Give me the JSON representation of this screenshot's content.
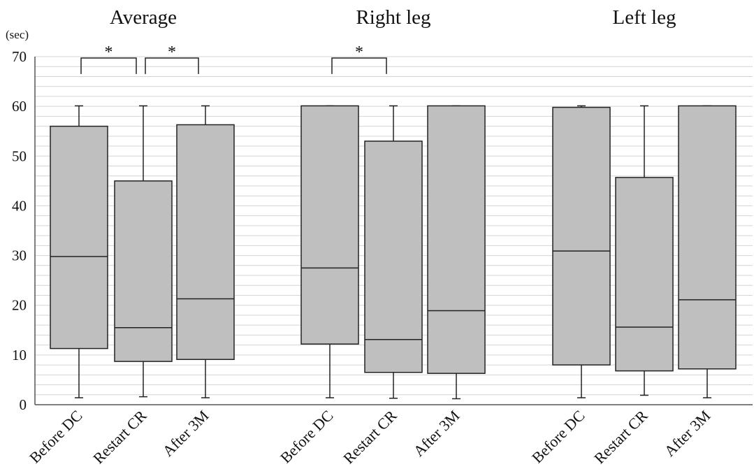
{
  "chart_data": {
    "type": "box",
    "unit_label": "(sec)",
    "ylim": [
      0,
      70
    ],
    "y_ticks": [
      0,
      10,
      20,
      30,
      40,
      50,
      60,
      70
    ],
    "grid": true,
    "panels": [
      {
        "title": "Average",
        "categories": [
          "Before DC",
          "Restart CR",
          "After 3M"
        ],
        "boxes": [
          {
            "min": 1.4,
            "q1": 11.3,
            "median": 29.8,
            "q3": 56.0,
            "max": 60.1
          },
          {
            "min": 1.6,
            "q1": 8.7,
            "median": 15.5,
            "q3": 45.0,
            "max": 60.1
          },
          {
            "min": 1.4,
            "q1": 9.1,
            "median": 21.3,
            "q3": 56.3,
            "max": 60.1
          }
        ],
        "significance": [
          {
            "from": 0,
            "to": 1,
            "label": "*"
          },
          {
            "from": 1,
            "to": 2,
            "label": "*"
          }
        ]
      },
      {
        "title": "Right leg",
        "categories": [
          "Before DC",
          "Restart CR",
          "After 3M"
        ],
        "boxes": [
          {
            "min": 1.4,
            "q1": 12.2,
            "median": 27.5,
            "q3": 60.1,
            "max": 60.1
          },
          {
            "min": 1.3,
            "q1": 6.5,
            "median": 13.1,
            "q3": 53.0,
            "max": 60.1
          },
          {
            "min": 1.2,
            "q1": 6.3,
            "median": 18.9,
            "q3": 60.1,
            "max": 60.1
          }
        ],
        "significance": [
          {
            "from": 0,
            "to": 1,
            "label": "*"
          }
        ]
      },
      {
        "title": "Left leg",
        "categories": [
          "Before DC",
          "Restart CR",
          "After 3M"
        ],
        "boxes": [
          {
            "min": 1.4,
            "q1": 8.0,
            "median": 30.9,
            "q3": 59.8,
            "max": 60.1
          },
          {
            "min": 1.9,
            "q1": 6.8,
            "median": 15.6,
            "q3": 45.7,
            "max": 60.1
          },
          {
            "min": 1.4,
            "q1": 7.2,
            "median": 21.1,
            "q3": 60.1,
            "max": 60.1
          }
        ],
        "significance": []
      }
    ]
  }
}
